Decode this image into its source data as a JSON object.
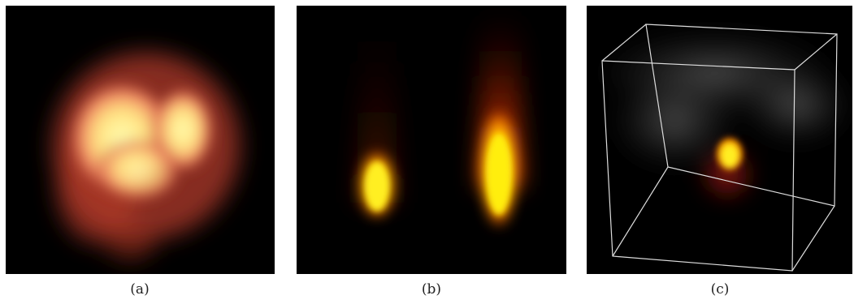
{
  "figures": [
    {
      "caption": "(a)"
    },
    {
      "caption": "(b)"
    },
    {
      "caption": "(c)"
    }
  ]
}
